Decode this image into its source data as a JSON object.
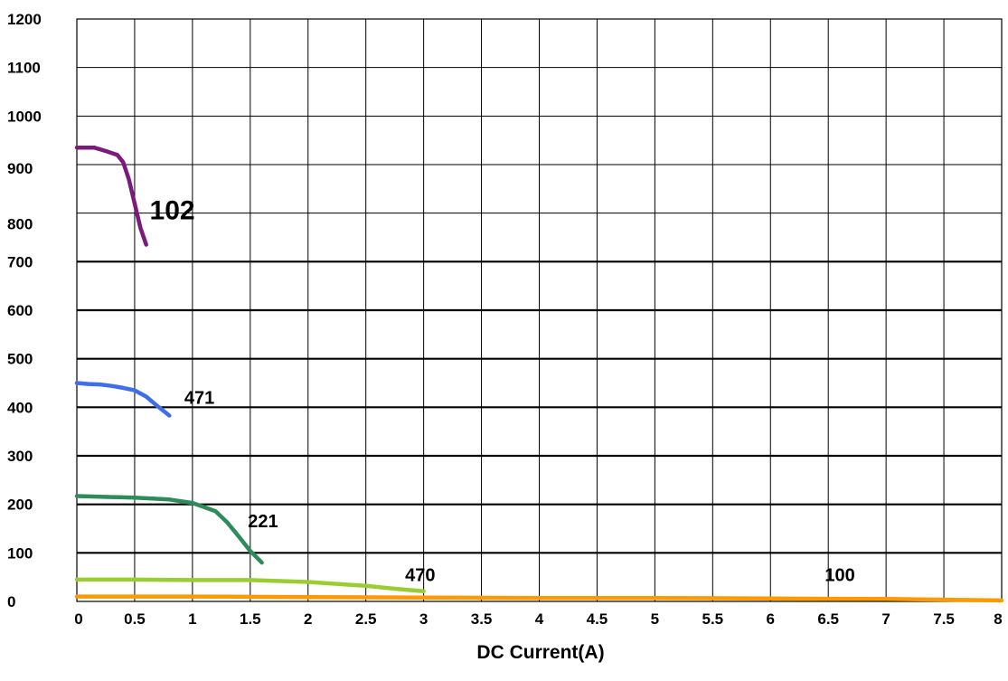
{
  "chart_data": {
    "type": "line",
    "xlabel": "DC Current(A)",
    "ylabel": "",
    "title": "",
    "grid": true,
    "legend": "none",
    "xlim": [
      0,
      8
    ],
    "ylim": [
      0,
      1200
    ],
    "x_ticks": [
      "0",
      "0.5",
      "1",
      "1.5",
      "2",
      "2.5",
      "3",
      "3.5",
      "4",
      "4.5",
      "5",
      "5.5",
      "6",
      "6.5",
      "7",
      "7.5",
      "8"
    ],
    "y_ticks": [
      "0",
      "100",
      "200",
      "300",
      "400",
      "500",
      "600",
      "700",
      "800",
      "900",
      "1000",
      "1100",
      "1200"
    ],
    "series": [
      {
        "name": "102",
        "color": "#7b1a7e",
        "x": [
          0,
          0.15,
          0.25,
          0.35,
          0.4,
          0.45,
          0.5,
          0.55,
          0.6
        ],
        "y": [
          935,
          935,
          928,
          920,
          905,
          870,
          820,
          770,
          735
        ]
      },
      {
        "name": "471",
        "color": "#3f6fe8",
        "x": [
          0,
          0.1,
          0.2,
          0.3,
          0.4,
          0.5,
          0.6,
          0.7,
          0.8
        ],
        "y": [
          450,
          448,
          447,
          444,
          440,
          435,
          422,
          402,
          383
        ]
      },
      {
        "name": "221",
        "color": "#2e8b5a",
        "x": [
          0,
          0.3,
          0.5,
          0.8,
          1.0,
          1.2,
          1.3,
          1.4,
          1.5,
          1.6
        ],
        "y": [
          217,
          215,
          214,
          210,
          203,
          186,
          163,
          134,
          104,
          80
        ]
      },
      {
        "name": "470",
        "color": "#9acd32",
        "x": [
          0,
          0.5,
          1.0,
          1.5,
          2.0,
          2.5,
          2.75,
          3.0
        ],
        "y": [
          45,
          45,
          44,
          44,
          40,
          32,
          26,
          21
        ]
      },
      {
        "name": "100",
        "color": "#ff9900",
        "x": [
          0,
          1,
          2,
          3,
          4,
          5,
          6,
          7,
          8
        ],
        "y": [
          10,
          10,
          9,
          8,
          7,
          7,
          6,
          5,
          2
        ]
      }
    ]
  }
}
